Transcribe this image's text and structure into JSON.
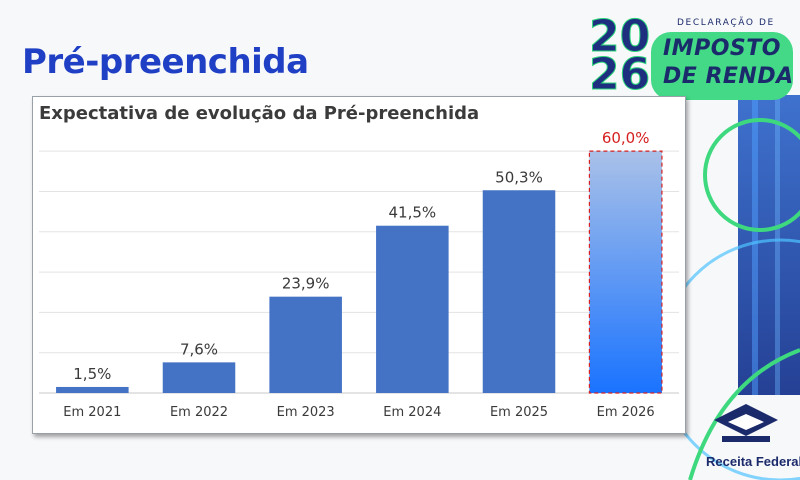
{
  "slide": {
    "title": "Pré-preenchida"
  },
  "logo": {
    "declaracao": "DECLARAÇÃO DE",
    "year_top": "20",
    "year_bottom": "26",
    "line1": "IMPOSTO",
    "line2": "DE RENDA"
  },
  "footer_logo": {
    "text": "Receita Federal"
  },
  "colors": {
    "title": "#1f3fc4",
    "bar": "#4472c4",
    "highlight_label": "#d62020",
    "highlight_border": "#d62020",
    "highlight_gradient_top": "#a9c1e8",
    "highlight_gradient_bottom": "#1a73ff"
  },
  "chart_data": {
    "type": "bar",
    "title": "Expectativa de evolução da Pré-preenchida",
    "categories": [
      "Em 2021",
      "Em 2022",
      "Em 2023",
      "Em 2024",
      "Em 2025",
      "Em 2026"
    ],
    "values": [
      1.5,
      7.6,
      23.9,
      41.5,
      50.3,
      60.0
    ],
    "value_labels": [
      "1,5%",
      "7,6%",
      "23,9%",
      "41,5%",
      "50,3%",
      "60,0%"
    ],
    "highlighted_category": "Em 2026",
    "ylim": [
      0,
      65
    ],
    "grid": true,
    "xlabel": "",
    "ylabel": ""
  }
}
